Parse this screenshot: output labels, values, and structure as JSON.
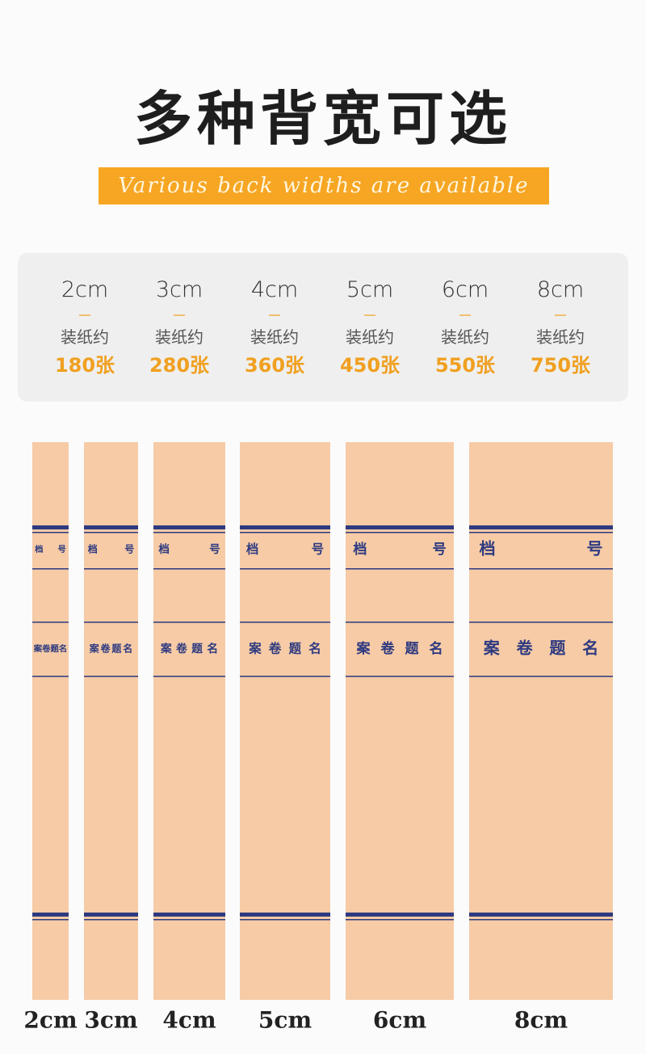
{
  "header": {
    "title": "多种背宽可选",
    "subtitle": "Various back widths are available"
  },
  "options": [
    {
      "width": "2cm",
      "label": "装纸约",
      "count": "180张"
    },
    {
      "width": "3cm",
      "label": "装纸约",
      "count": "280张"
    },
    {
      "width": "4cm",
      "label": "装纸约",
      "count": "360张"
    },
    {
      "width": "5cm",
      "label": "装纸约",
      "count": "450张"
    },
    {
      "width": "6cm",
      "label": "装纸约",
      "count": "550张"
    },
    {
      "width": "8cm",
      "label": "装纸约",
      "count": "750张"
    }
  ],
  "spine_fields": {
    "left": "档",
    "right": "号",
    "title": "案卷题名"
  },
  "spines": [
    {
      "label": "2cm"
    },
    {
      "label": "3cm"
    },
    {
      "label": "4cm"
    },
    {
      "label": "5cm"
    },
    {
      "label": "6cm"
    },
    {
      "label": "8cm"
    }
  ]
}
